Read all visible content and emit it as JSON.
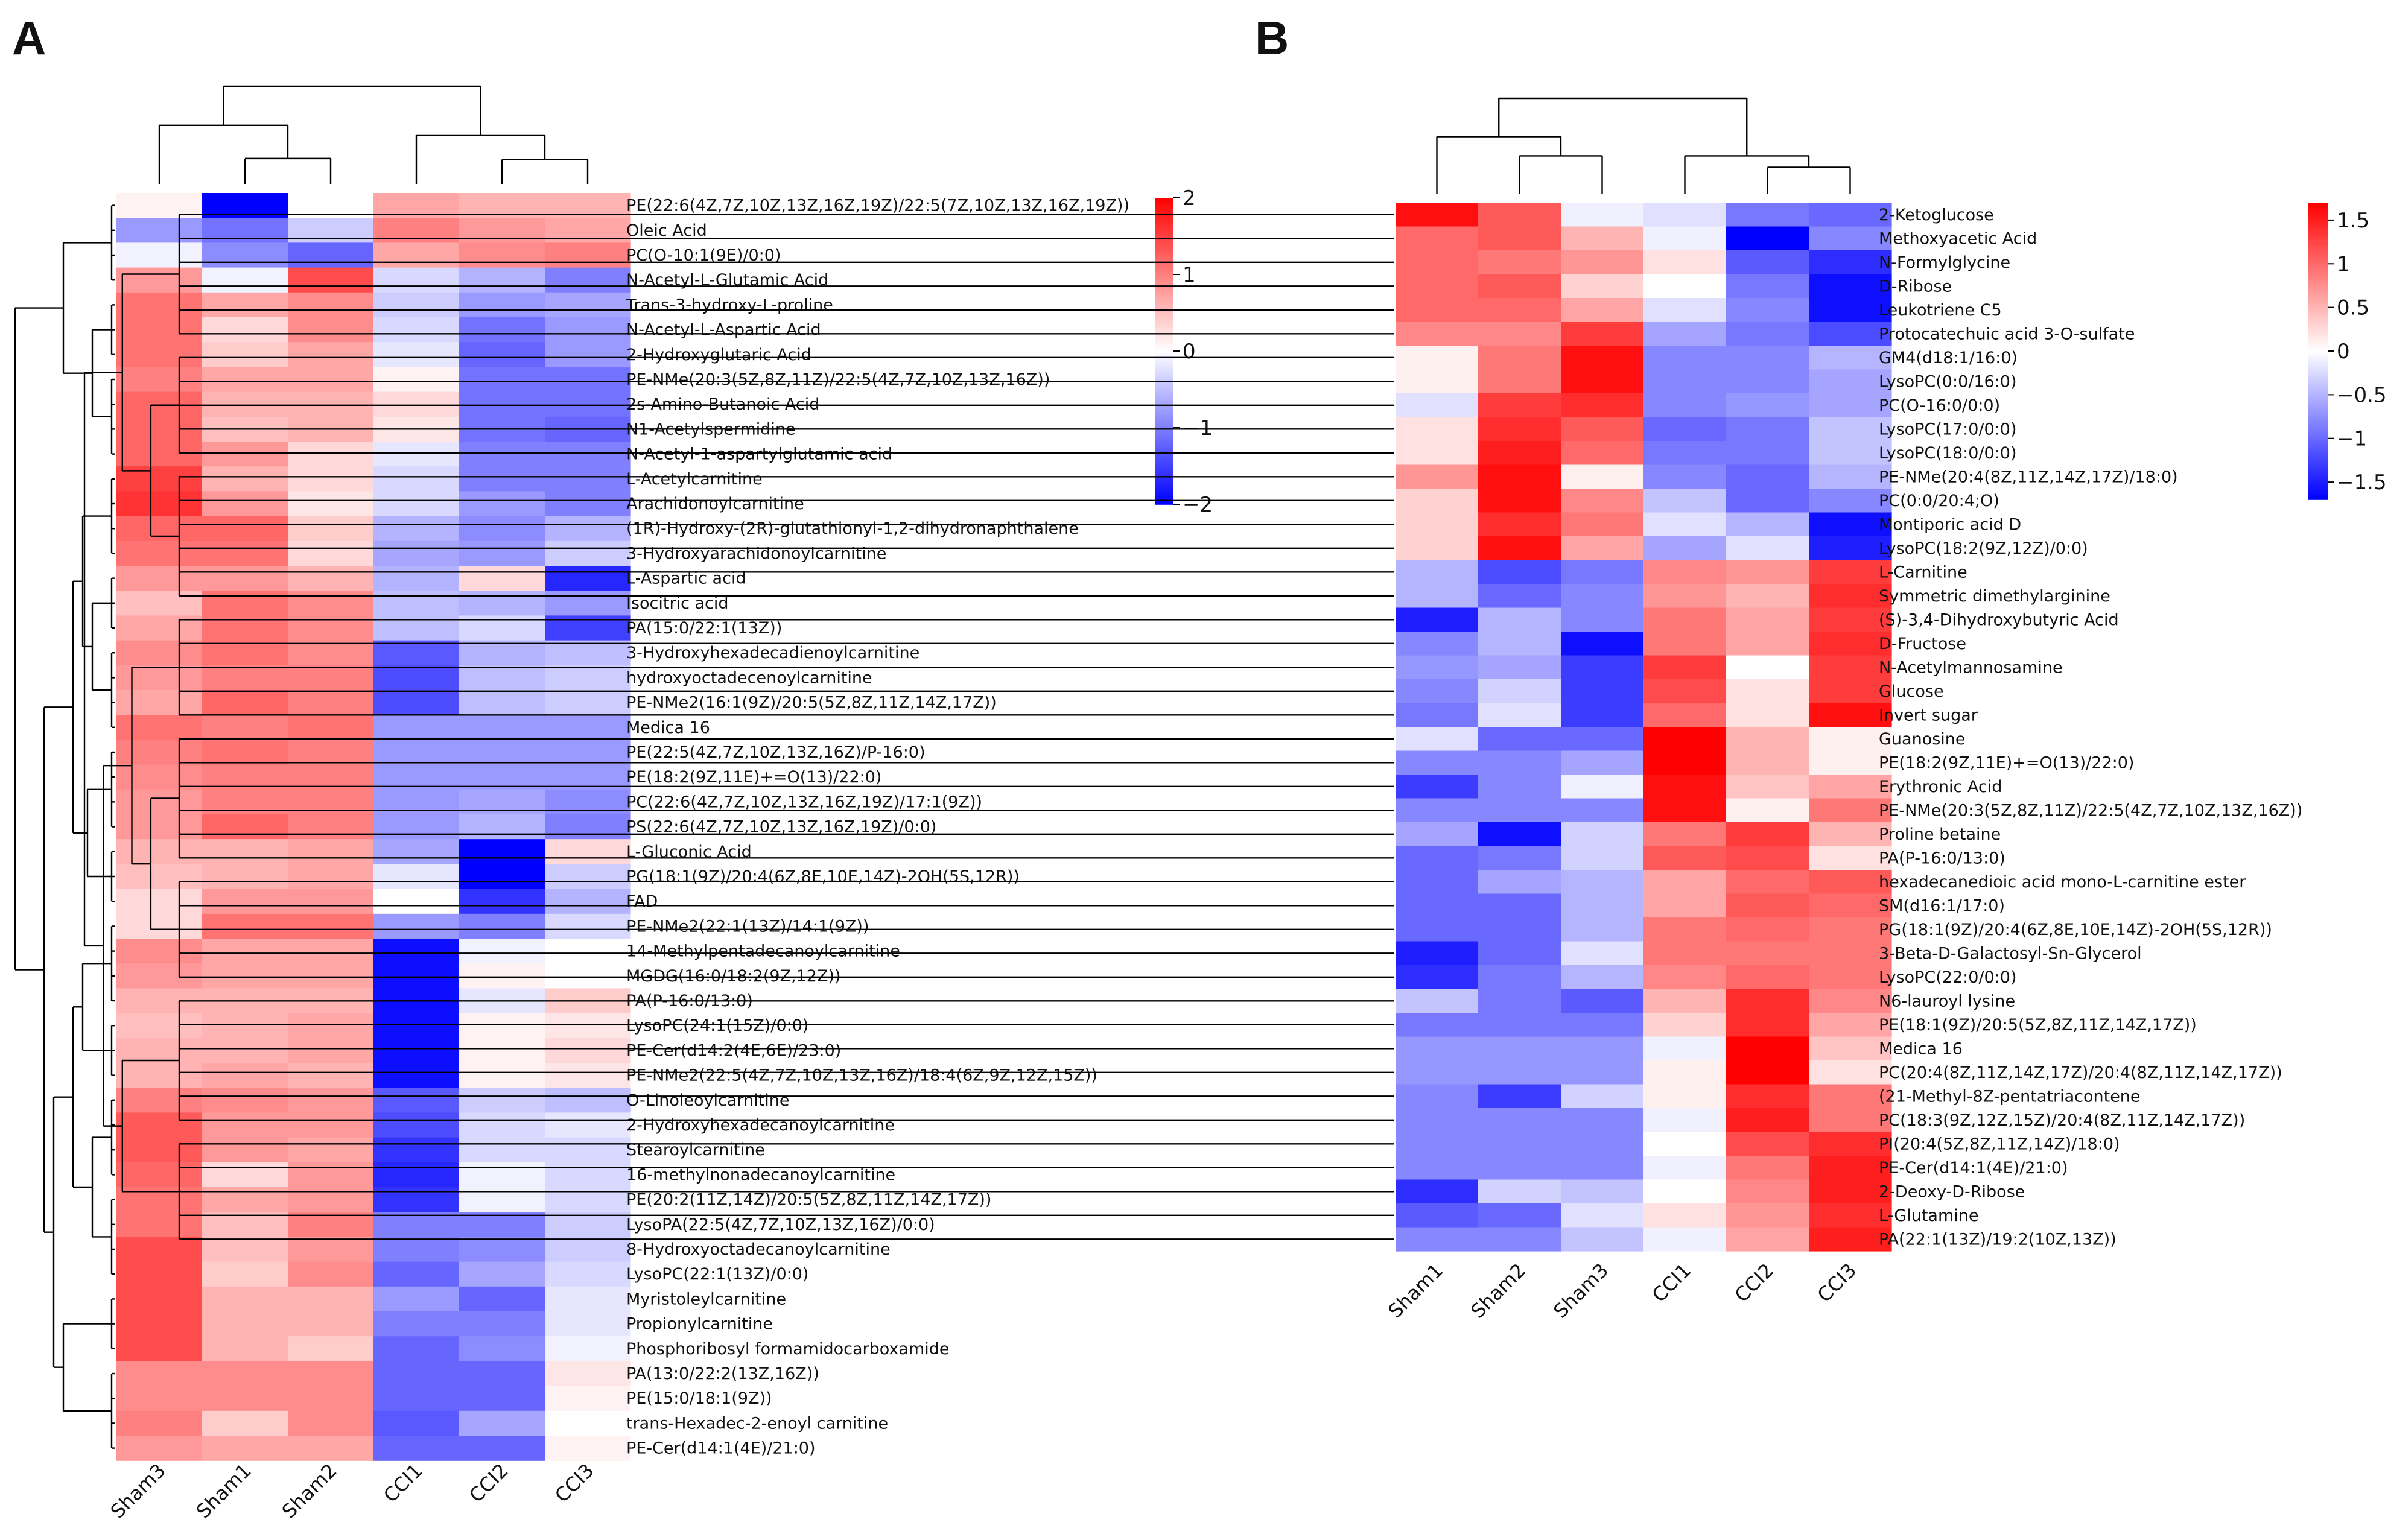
{
  "figure": {
    "colors": {
      "low": "#0000ff",
      "mid": "#ffffff",
      "high": "#ff0000"
    }
  },
  "chart_data": [
    {
      "type": "heatmap",
      "panel": "A",
      "title": "",
      "columns": [
        "Sham3",
        "Sham1",
        "Sham2",
        "CCI1",
        "CCI2",
        "CCI3"
      ],
      "color_range": [
        -2,
        2
      ],
      "colorbar_ticks": [
        2,
        1,
        0,
        -1,
        -2
      ],
      "colorbar_tick_labels": [
        "2",
        "1",
        "0",
        "−1",
        "−2"
      ],
      "rows": [
        "PE(22:6(4Z,7Z,10Z,13Z,16Z,19Z)/22:5(7Z,10Z,13Z,16Z,19Z))",
        "Oleic Acid",
        "PC(O-10:1(9E)/0:0)",
        "N-Acetyl-L-Glutamic Acid",
        "Trans-3-hydroxy-L-proline",
        "N-Acetyl-L-Aspartic Acid",
        "2-Hydroxyglutaric Acid",
        "PE-NMe(20:3(5Z,8Z,11Z)/22:5(4Z,7Z,10Z,13Z,16Z))",
        "2s-Amino-Butanoic Acid",
        "N1-Acetylspermidine",
        "N-Acetyl-1-aspartylglutamic acid",
        "L-Acetylcarnitine",
        "Arachidonoylcarnitine",
        "(1R)-Hydroxy-(2R)-glutathionyl-1,2-dihydronaphthalene",
        "3-Hydroxyarachidonoylcarnitine",
        "L-Aspartic acid",
        "Isocitric acid",
        "PA(15:0/22:1(13Z))",
        "3-Hydroxyhexadecadienoylcarnitine",
        "hydroxyoctadecenoylcarnitine",
        "PE-NMe2(16:1(9Z)/20:5(5Z,8Z,11Z,14Z,17Z))",
        "Medica 16",
        "PE(22:5(4Z,7Z,10Z,13Z,16Z)/P-16:0)",
        "PE(18:2(9Z,11E)+=O(13)/22:0)",
        "PC(22:6(4Z,7Z,10Z,13Z,16Z,19Z)/17:1(9Z))",
        "PS(22:6(4Z,7Z,10Z,13Z,16Z,19Z)/0:0)",
        "L-Gluconic Acid",
        "PG(18:1(9Z)/20:4(6Z,8E,10E,14Z)-2OH(5S,12R))",
        "FAD",
        "PE-NMe2(22:1(13Z)/14:1(9Z))",
        "14-Methylpentadecanoylcarnitine",
        "MGDG(16:0/18:2(9Z,12Z))",
        "PA(P-16:0/13:0)",
        "LysoPC(24:1(15Z)/0:0)",
        "PE-Cer(d14:2(4E,6E)/23:0)",
        "PE-NMe2(22:5(4Z,7Z,10Z,13Z,16Z)/18:4(6Z,9Z,12Z,15Z))",
        "O-Linoleoylcarnitine",
        "2-Hydroxyhexadecanoylcarnitine",
        "Stearoylcarnitine",
        "16-methylnonadecanoylcarnitine",
        "PE(20:2(11Z,14Z)/20:5(5Z,8Z,11Z,14Z,17Z))",
        "LysoPA(22:5(4Z,7Z,10Z,13Z,16Z)/0:0)",
        "8-Hydroxyoctadecanoylcarnitine",
        "LysoPC(22:1(13Z)/0:0)",
        "Myristoleylcarnitine",
        "Propionylcarnitine",
        "Phosphoribosyl formamidocarboxamide",
        "PA(13:0/22:2(13Z,16Z))",
        "PE(15:0/18:1(9Z))",
        "trans-Hexadec-2-enoyl carnitine",
        "PE-Cer(d14:1(4E)/21:0)"
      ],
      "values": [
        [
          0.1,
          -2.0,
          0.0,
          0.7,
          0.6,
          0.6
        ],
        [
          -0.8,
          -1.1,
          -0.4,
          1.0,
          0.8,
          0.7
        ],
        [
          -0.1,
          -0.9,
          -1.2,
          0.7,
          0.9,
          1.0
        ],
        [
          0.8,
          -0.1,
          1.4,
          -0.3,
          -0.6,
          -1.0
        ],
        [
          1.1,
          0.7,
          0.9,
          -0.4,
          -0.8,
          -0.7
        ],
        [
          1.1,
          0.3,
          0.9,
          -0.3,
          -1.1,
          -0.8
        ],
        [
          1.1,
          0.4,
          0.7,
          -0.2,
          -1.2,
          -0.8
        ],
        [
          1.0,
          0.7,
          0.7,
          0.1,
          -1.1,
          -1.1
        ],
        [
          1.2,
          0.6,
          0.6,
          0.3,
          -1.1,
          -1.1
        ],
        [
          1.2,
          0.5,
          0.6,
          0.2,
          -1.1,
          -1.2
        ],
        [
          1.2,
          0.8,
          0.3,
          -0.2,
          -1.0,
          -1.0
        ],
        [
          1.5,
          0.6,
          0.3,
          -0.3,
          -1.0,
          -1.0
        ],
        [
          1.6,
          0.8,
          0.2,
          -0.3,
          -0.8,
          -1.0
        ],
        [
          1.2,
          1.2,
          0.4,
          -0.6,
          -0.9,
          -0.6
        ],
        [
          1.1,
          1.1,
          0.3,
          -0.7,
          -0.8,
          -0.4
        ],
        [
          0.8,
          0.8,
          0.6,
          -0.6,
          0.3,
          -1.7
        ],
        [
          0.5,
          1.1,
          0.9,
          -0.5,
          -0.6,
          -0.8
        ],
        [
          0.7,
          1.1,
          0.9,
          -0.5,
          -0.3,
          -1.5
        ],
        [
          0.9,
          1.1,
          0.9,
          -1.3,
          -0.6,
          -0.5
        ],
        [
          0.8,
          1.0,
          1.0,
          -1.4,
          -0.5,
          -0.4
        ],
        [
          0.7,
          1.2,
          1.0,
          -1.4,
          -0.5,
          -0.4
        ],
        [
          1.1,
          1.0,
          1.1,
          -0.8,
          -0.8,
          -0.8
        ],
        [
          1.0,
          1.1,
          1.0,
          -0.8,
          -0.8,
          -0.8
        ],
        [
          0.9,
          1.0,
          1.0,
          -0.8,
          -0.8,
          -0.8
        ],
        [
          0.8,
          1.0,
          1.0,
          -0.8,
          -0.7,
          -0.9
        ],
        [
          0.8,
          1.2,
          1.0,
          -0.8,
          -0.6,
          -1.0
        ],
        [
          0.6,
          0.6,
          0.7,
          -0.7,
          -2.0,
          0.3
        ],
        [
          0.5,
          0.6,
          0.7,
          -0.2,
          -2.0,
          -0.4
        ],
        [
          0.3,
          0.8,
          0.8,
          0.0,
          -1.6,
          -0.6
        ],
        [
          0.3,
          1.1,
          1.1,
          -0.8,
          -1.0,
          -0.3
        ],
        [
          0.9,
          0.7,
          0.7,
          -1.9,
          -0.1,
          0.0
        ],
        [
          0.8,
          0.7,
          0.7,
          -1.9,
          0.1,
          0.0
        ],
        [
          0.6,
          0.6,
          0.6,
          -1.9,
          -0.2,
          0.4
        ],
        [
          0.5,
          0.6,
          0.7,
          -1.9,
          0.1,
          0.2
        ],
        [
          0.6,
          0.6,
          0.7,
          -1.9,
          0.1,
          0.3
        ],
        [
          0.6,
          0.7,
          0.6,
          -1.9,
          0.1,
          0.2
        ],
        [
          1.0,
          0.9,
          0.8,
          -1.3,
          -0.4,
          -0.5
        ],
        [
          1.3,
          0.8,
          0.8,
          -1.4,
          -0.3,
          -0.2
        ],
        [
          1.3,
          0.8,
          0.7,
          -1.6,
          -0.3,
          -0.3
        ],
        [
          1.2,
          0.3,
          0.8,
          -1.7,
          -0.1,
          -0.3
        ],
        [
          1.1,
          0.7,
          0.8,
          -1.6,
          -0.1,
          -0.3
        ],
        [
          1.1,
          0.5,
          1.0,
          -1.0,
          -1.0,
          -0.4
        ],
        [
          1.4,
          0.5,
          0.8,
          -1.0,
          -0.9,
          -0.4
        ],
        [
          1.4,
          0.4,
          0.9,
          -1.2,
          -0.7,
          -0.3
        ],
        [
          1.4,
          0.6,
          0.6,
          -0.8,
          -1.2,
          -0.2
        ],
        [
          1.4,
          0.6,
          0.6,
          -1.0,
          -1.0,
          -0.2
        ],
        [
          1.4,
          0.6,
          0.4,
          -1.2,
          -0.9,
          -0.1
        ],
        [
          0.9,
          0.9,
          0.9,
          -1.2,
          -1.2,
          0.2
        ],
        [
          0.9,
          0.9,
          0.9,
          -1.2,
          -1.2,
          0.1
        ],
        [
          1.0,
          0.4,
          0.9,
          -1.3,
          -0.7,
          0.0
        ],
        [
          0.8,
          0.7,
          0.7,
          -1.2,
          -1.2,
          0.1
        ]
      ]
    },
    {
      "type": "heatmap",
      "panel": "B",
      "title": "",
      "columns": [
        "Sham1",
        "Sham2",
        "Sham3",
        "CCI1",
        "CCI2",
        "CCI3"
      ],
      "color_range": [
        -1.7,
        1.7
      ],
      "colorbar_ticks": [
        1.5,
        1,
        0.5,
        0,
        -0.5,
        -1,
        -1.5
      ],
      "colorbar_tick_labels": [
        "1.5",
        "1",
        "0.5",
        "0",
        "−0.5",
        "−1",
        "−1.5"
      ],
      "rows": [
        "2-Ketoglucose",
        "Methoxyacetic Acid",
        "N-Formylglycine",
        "D-Ribose",
        "Leukotriene C5",
        "Protocatechuic acid 3-O-sulfate",
        "GM4(d18:1/16:0)",
        "LysoPC(0:0/16:0)",
        "PC(O-16:0/0:0)",
        "LysoPC(17:0/0:0)",
        "LysoPC(18:0/0:0)",
        "PE-NMe(20:4(8Z,11Z,14Z,17Z)/18:0)",
        "PC(0:0/20:4;O)",
        "Montiporic acid D",
        "LysoPC(18:2(9Z,12Z)/0:0)",
        "L-Carnitine",
        "Symmetric dimethylarginine",
        "(S)-3,4-Dihydroxybutyric Acid",
        "D-Fructose",
        "N-Acetylmannosamine",
        "Glucose",
        "Invert sugar",
        "Guanosine",
        "PE(18:2(9Z,11E)+=O(13)/22:0)",
        "Erythronic Acid",
        "PE-NMe(20:3(5Z,8Z,11Z)/22:5(4Z,7Z,10Z,13Z,16Z))",
        "Proline betaine",
        "PA(P-16:0/13:0)",
        "hexadecanedioic acid mono-L-carnitine ester",
        "SM(d16:1/17:0)",
        "PG(18:1(9Z)/20:4(6Z,8E,10E,14Z)-2OH(5S,12R))",
        "3-Beta-D-Galactosyl-Sn-Glycerol",
        "LysoPC(22:0/0:0)",
        "N6-lauroyl lysine",
        "PE(18:1(9Z)/20:5(5Z,8Z,11Z,14Z,17Z))",
        "Medica 16",
        "PC(20:4(8Z,11Z,14Z,17Z)/20:4(8Z,11Z,14Z,17Z))",
        "(21-Methyl-8Z-pentatriacontene",
        "PC(18:3(9Z,12Z,15Z)/20:4(8Z,11Z,14Z,17Z))",
        "PI(20:4(5Z,8Z,11Z,14Z)/18:0)",
        "PE-Cer(d14:1(4E)/21:0)",
        "2-Deoxy-D-Ribose",
        "L-Glutamine",
        "PA(22:1(13Z)/19:2(10Z,13Z))"
      ],
      "values": [
        [
          1.6,
          1.1,
          -0.1,
          -0.2,
          -0.9,
          -1.0
        ],
        [
          1.0,
          1.1,
          0.5,
          -0.1,
          -1.7,
          -0.8
        ],
        [
          1.0,
          0.9,
          0.7,
          0.2,
          -1.1,
          -1.4
        ],
        [
          1.0,
          1.1,
          0.3,
          0.0,
          -0.9,
          -1.6
        ],
        [
          1.0,
          1.0,
          0.6,
          -0.2,
          -0.8,
          -1.6
        ],
        [
          0.8,
          0.8,
          1.3,
          -0.6,
          -0.9,
          -1.2
        ],
        [
          0.1,
          0.9,
          1.6,
          -0.8,
          -0.8,
          -0.5
        ],
        [
          0.1,
          0.9,
          1.6,
          -0.8,
          -0.8,
          -0.6
        ],
        [
          -0.2,
          1.3,
          1.4,
          -0.8,
          -0.7,
          -0.6
        ],
        [
          0.2,
          1.4,
          1.1,
          -1.0,
          -0.9,
          -0.4
        ],
        [
          0.2,
          1.5,
          1.0,
          -0.9,
          -0.9,
          -0.4
        ],
        [
          0.7,
          1.6,
          0.1,
          -0.8,
          -1.0,
          -0.5
        ],
        [
          0.3,
          1.6,
          0.8,
          -0.4,
          -1.0,
          -0.8
        ],
        [
          0.3,
          1.4,
          0.9,
          -0.2,
          -0.5,
          -1.6
        ],
        [
          0.3,
          1.6,
          0.6,
          -0.6,
          -0.2,
          -1.5
        ],
        [
          -0.5,
          -1.2,
          -0.9,
          0.8,
          0.7,
          1.3
        ],
        [
          -0.5,
          -1.0,
          -0.8,
          0.7,
          0.5,
          1.4
        ],
        [
          -1.5,
          -0.5,
          -0.8,
          0.9,
          0.6,
          1.3
        ],
        [
          -0.8,
          -0.5,
          -1.6,
          0.9,
          0.6,
          1.4
        ],
        [
          -0.7,
          -0.6,
          -1.3,
          1.3,
          0.0,
          1.3
        ],
        [
          -0.8,
          -0.3,
          -1.3,
          1.2,
          0.2,
          1.3
        ],
        [
          -0.9,
          -0.2,
          -1.3,
          1.0,
          0.2,
          1.6
        ],
        [
          -0.2,
          -1.0,
          -1.0,
          1.7,
          0.5,
          0.1
        ],
        [
          -0.8,
          -0.8,
          -0.6,
          1.7,
          0.5,
          0.1
        ],
        [
          -1.3,
          -0.8,
          -0.1,
          1.6,
          0.4,
          0.6
        ],
        [
          -0.8,
          -0.8,
          -0.8,
          1.6,
          0.1,
          0.9
        ],
        [
          -0.6,
          -1.6,
          -0.3,
          0.9,
          1.3,
          0.5
        ],
        [
          -1.0,
          -0.9,
          -0.3,
          1.1,
          1.2,
          0.2
        ],
        [
          -1.0,
          -0.6,
          -0.5,
          0.6,
          1.0,
          1.1
        ],
        [
          -1.0,
          -1.0,
          -0.5,
          0.6,
          1.1,
          1.0
        ],
        [
          -1.0,
          -1.0,
          -0.5,
          0.9,
          1.0,
          0.9
        ],
        [
          -1.5,
          -1.0,
          -0.2,
          0.9,
          0.9,
          0.9
        ],
        [
          -1.4,
          -0.9,
          -0.5,
          0.8,
          1.0,
          0.9
        ],
        [
          -0.4,
          -0.9,
          -1.1,
          0.5,
          1.4,
          0.8
        ],
        [
          -0.9,
          -0.9,
          -0.9,
          0.3,
          1.4,
          0.6
        ],
        [
          -0.7,
          -0.7,
          -0.7,
          -0.1,
          1.7,
          0.4
        ],
        [
          -0.7,
          -0.7,
          -0.7,
          0.1,
          1.7,
          0.2
        ],
        [
          -0.8,
          -1.3,
          -0.3,
          0.1,
          1.4,
          0.9
        ],
        [
          -0.8,
          -0.8,
          -0.8,
          -0.1,
          1.5,
          0.9
        ],
        [
          -0.8,
          -0.8,
          -0.8,
          0.0,
          1.2,
          1.4
        ],
        [
          -0.8,
          -0.8,
          -0.8,
          -0.1,
          0.9,
          1.5
        ],
        [
          -1.4,
          -0.3,
          -0.4,
          0.0,
          0.8,
          1.5
        ],
        [
          -1.1,
          -1.0,
          -0.2,
          0.2,
          0.7,
          1.4
        ],
        [
          -0.8,
          -0.8,
          -0.4,
          -0.1,
          0.6,
          1.5
        ]
      ]
    }
  ]
}
